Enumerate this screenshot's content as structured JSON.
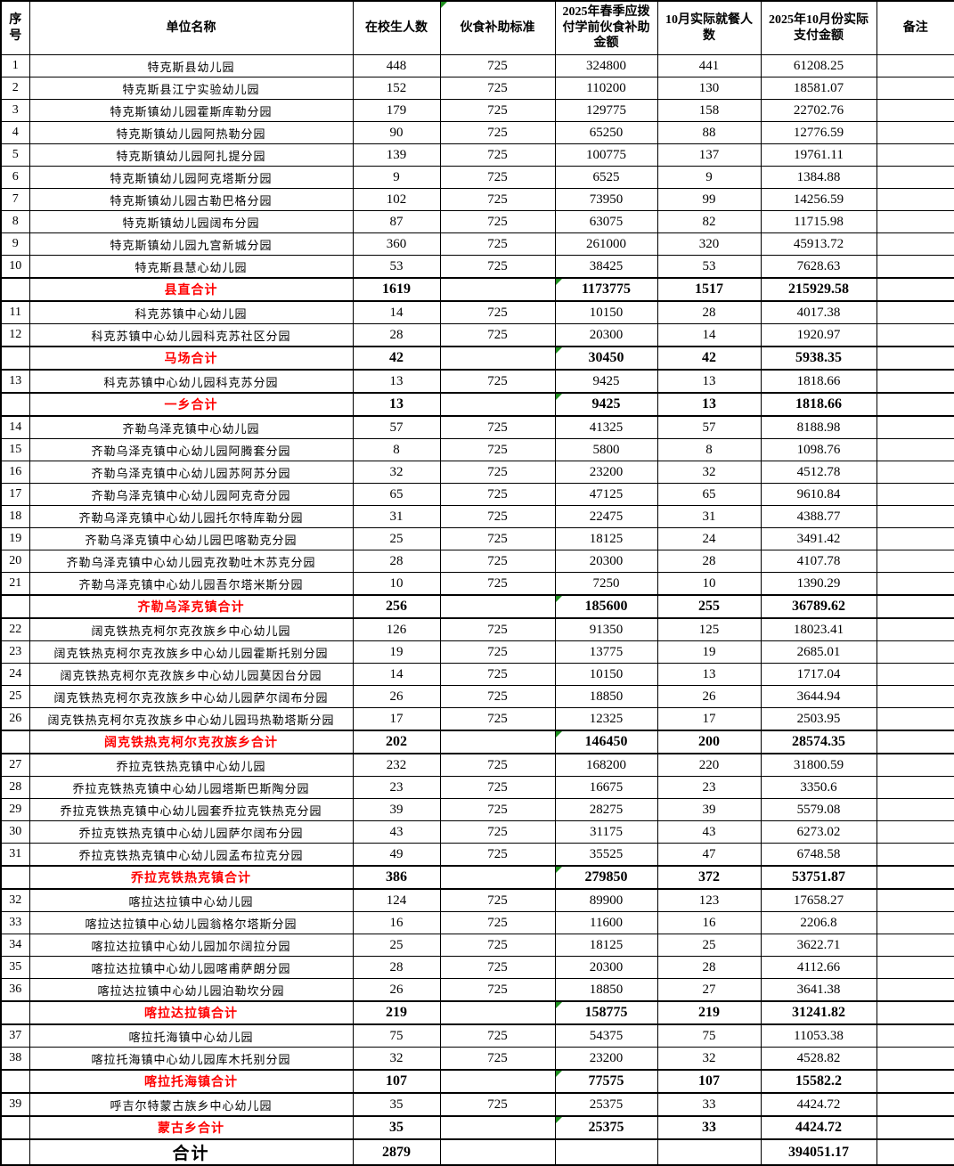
{
  "colors": {
    "grid": "#000000",
    "subtotal_text": "#ff0000",
    "flag_green": "#1e8f1e",
    "body_text": "#000000"
  },
  "table": {
    "headers": [
      "序号",
      "单位名称",
      "在校生人数",
      "伙食补助标准",
      "2025年春季应拨付学前伙食补助金额",
      "10月实际就餐人数",
      "2025年10月份实际支付金额",
      "备注"
    ],
    "header_flag_index": 3,
    "rows": [
      {
        "kind": "data",
        "cells": [
          "1",
          "特克斯县幼儿园",
          "448",
          "725",
          "324800",
          "441",
          "61208.25",
          ""
        ]
      },
      {
        "kind": "data",
        "cells": [
          "2",
          "特克斯县江宁实验幼儿园",
          "152",
          "725",
          "110200",
          "130",
          "18581.07",
          ""
        ]
      },
      {
        "kind": "data",
        "cells": [
          "3",
          "特克斯镇幼儿园霍斯库勒分园",
          "179",
          "725",
          "129775",
          "158",
          "22702.76",
          ""
        ]
      },
      {
        "kind": "data",
        "cells": [
          "4",
          "特克斯镇幼儿园阿热勒分园",
          "90",
          "725",
          "65250",
          "88",
          "12776.59",
          ""
        ]
      },
      {
        "kind": "data",
        "cells": [
          "5",
          "特克斯镇幼儿园阿扎提分园",
          "139",
          "725",
          "100775",
          "137",
          "19761.11",
          ""
        ]
      },
      {
        "kind": "data",
        "cells": [
          "6",
          "特克斯镇幼儿园阿克塔斯分园",
          "9",
          "725",
          "6525",
          "9",
          "1384.88",
          ""
        ]
      },
      {
        "kind": "data",
        "cells": [
          "7",
          "特克斯镇幼儿园古勒巴格分园",
          "102",
          "725",
          "73950",
          "99",
          "14256.59",
          ""
        ]
      },
      {
        "kind": "data",
        "cells": [
          "8",
          "特克斯镇幼儿园阔布分园",
          "87",
          "725",
          "63075",
          "82",
          "11715.98",
          ""
        ]
      },
      {
        "kind": "data",
        "cells": [
          "9",
          "特克斯镇幼儿园九宫新城分园",
          "360",
          "725",
          "261000",
          "320",
          "45913.72",
          ""
        ]
      },
      {
        "kind": "data",
        "cells": [
          "10",
          "特克斯县慧心幼儿园",
          "53",
          "725",
          "38425",
          "53",
          "7628.63",
          ""
        ]
      },
      {
        "kind": "subtotal",
        "flag": true,
        "cells": [
          "",
          "县直合计",
          "1619",
          "",
          "1173775",
          "1517",
          "215929.58",
          ""
        ]
      },
      {
        "kind": "data",
        "cells": [
          "11",
          "科克苏镇中心幼儿园",
          "14",
          "725",
          "10150",
          "28",
          "4017.38",
          ""
        ]
      },
      {
        "kind": "data",
        "cells": [
          "12",
          "科克苏镇中心幼儿园科克苏社区分园",
          "28",
          "725",
          "20300",
          "14",
          "1920.97",
          ""
        ]
      },
      {
        "kind": "subtotal",
        "flag": true,
        "cells": [
          "",
          "马场合计",
          "42",
          "",
          "30450",
          "42",
          "5938.35",
          ""
        ]
      },
      {
        "kind": "data",
        "cells": [
          "13",
          "科克苏镇中心幼儿园科克苏分园",
          "13",
          "725",
          "9425",
          "13",
          "1818.66",
          ""
        ]
      },
      {
        "kind": "subtotal",
        "flag": true,
        "cells": [
          "",
          "一乡合计",
          "13",
          "",
          "9425",
          "13",
          "1818.66",
          ""
        ]
      },
      {
        "kind": "data",
        "cells": [
          "14",
          "齐勒乌泽克镇中心幼儿园",
          "57",
          "725",
          "41325",
          "57",
          "8188.98",
          ""
        ]
      },
      {
        "kind": "data",
        "cells": [
          "15",
          "齐勒乌泽克镇中心幼儿园阿腾套分园",
          "8",
          "725",
          "5800",
          "8",
          "1098.76",
          ""
        ]
      },
      {
        "kind": "data",
        "cells": [
          "16",
          "齐勒乌泽克镇中心幼儿园苏阿苏分园",
          "32",
          "725",
          "23200",
          "32",
          "4512.78",
          ""
        ]
      },
      {
        "kind": "data",
        "cells": [
          "17",
          "齐勒乌泽克镇中心幼儿园阿克奇分园",
          "65",
          "725",
          "47125",
          "65",
          "9610.84",
          ""
        ]
      },
      {
        "kind": "data",
        "cells": [
          "18",
          "齐勒乌泽克镇中心幼儿园托尔特库勒分园",
          "31",
          "725",
          "22475",
          "31",
          "4388.77",
          ""
        ]
      },
      {
        "kind": "data",
        "cells": [
          "19",
          "齐勒乌泽克镇中心幼儿园巴喀勒克分园",
          "25",
          "725",
          "18125",
          "24",
          "3491.42",
          ""
        ]
      },
      {
        "kind": "data",
        "cells": [
          "20",
          "齐勒乌泽克镇中心幼儿园克孜勒吐木苏克分园",
          "28",
          "725",
          "20300",
          "28",
          "4107.78",
          ""
        ]
      },
      {
        "kind": "data",
        "cells": [
          "21",
          "齐勒乌泽克镇中心幼儿园吾尔塔米斯分园",
          "10",
          "725",
          "7250",
          "10",
          "1390.29",
          ""
        ]
      },
      {
        "kind": "subtotal",
        "flag": true,
        "cells": [
          "",
          "齐勒乌泽克镇合计",
          "256",
          "",
          "185600",
          "255",
          "36789.62",
          ""
        ]
      },
      {
        "kind": "data",
        "cells": [
          "22",
          "阔克铁热克柯尔克孜族乡中心幼儿园",
          "126",
          "725",
          "91350",
          "125",
          "18023.41",
          ""
        ]
      },
      {
        "kind": "data",
        "cells": [
          "23",
          "阔克铁热克柯尔克孜族乡中心幼儿园霍斯托别分园",
          "19",
          "725",
          "13775",
          "19",
          "2685.01",
          ""
        ]
      },
      {
        "kind": "data",
        "cells": [
          "24",
          "阔克铁热克柯尔克孜族乡中心幼儿园莫因台分园",
          "14",
          "725",
          "10150",
          "13",
          "1717.04",
          ""
        ]
      },
      {
        "kind": "data",
        "cells": [
          "25",
          "阔克铁热克柯尔克孜族乡中心幼儿园萨尔阔布分园",
          "26",
          "725",
          "18850",
          "26",
          "3644.94",
          ""
        ]
      },
      {
        "kind": "data",
        "cells": [
          "26",
          "阔克铁热克柯尔克孜族乡中心幼儿园玛热勒塔斯分园",
          "17",
          "725",
          "12325",
          "17",
          "2503.95",
          ""
        ]
      },
      {
        "kind": "subtotal",
        "flag": true,
        "cells": [
          "",
          "阔克铁热克柯尔克孜族乡合计",
          "202",
          "",
          "146450",
          "200",
          "28574.35",
          ""
        ]
      },
      {
        "kind": "data",
        "cells": [
          "27",
          "乔拉克铁热克镇中心幼儿园",
          "232",
          "725",
          "168200",
          "220",
          "31800.59",
          ""
        ]
      },
      {
        "kind": "data",
        "cells": [
          "28",
          "乔拉克铁热克镇中心幼儿园塔斯巴斯陶分园",
          "23",
          "725",
          "16675",
          "23",
          "3350.6",
          ""
        ]
      },
      {
        "kind": "data",
        "cells": [
          "29",
          "乔拉克铁热克镇中心幼儿园套乔拉克铁热克分园",
          "39",
          "725",
          "28275",
          "39",
          "5579.08",
          ""
        ]
      },
      {
        "kind": "data",
        "cells": [
          "30",
          "乔拉克铁热克镇中心幼儿园萨尔阔布分园",
          "43",
          "725",
          "31175",
          "43",
          "6273.02",
          ""
        ]
      },
      {
        "kind": "data",
        "cells": [
          "31",
          "乔拉克铁热克镇中心幼儿园孟布拉克分园",
          "49",
          "725",
          "35525",
          "47",
          "6748.58",
          ""
        ]
      },
      {
        "kind": "subtotal",
        "flag": true,
        "cells": [
          "",
          "乔拉克铁热克镇合计",
          "386",
          "",
          "279850",
          "372",
          "53751.87",
          ""
        ]
      },
      {
        "kind": "data",
        "cells": [
          "32",
          "喀拉达拉镇中心幼儿园",
          "124",
          "725",
          "89900",
          "123",
          "17658.27",
          ""
        ]
      },
      {
        "kind": "data",
        "cells": [
          "33",
          "喀拉达拉镇中心幼儿园翁格尔塔斯分园",
          "16",
          "725",
          "11600",
          "16",
          "2206.8",
          ""
        ]
      },
      {
        "kind": "data",
        "cells": [
          "34",
          "喀拉达拉镇中心幼儿园加尔阔拉分园",
          "25",
          "725",
          "18125",
          "25",
          "3622.71",
          ""
        ]
      },
      {
        "kind": "data",
        "cells": [
          "35",
          "喀拉达拉镇中心幼儿园喀甫萨朗分园",
          "28",
          "725",
          "20300",
          "28",
          "4112.66",
          ""
        ]
      },
      {
        "kind": "data",
        "cells": [
          "36",
          "喀拉达拉镇中心幼儿园泊勒坎分园",
          "26",
          "725",
          "18850",
          "27",
          "3641.38",
          ""
        ]
      },
      {
        "kind": "subtotal",
        "flag": true,
        "cells": [
          "",
          "喀拉达拉镇合计",
          "219",
          "",
          "158775",
          "219",
          "31241.82",
          ""
        ]
      },
      {
        "kind": "data",
        "cells": [
          "37",
          "喀拉托海镇中心幼儿园",
          "75",
          "725",
          "54375",
          "75",
          "11053.38",
          ""
        ]
      },
      {
        "kind": "data",
        "cells": [
          "38",
          "喀拉托海镇中心幼儿园库木托别分园",
          "32",
          "725",
          "23200",
          "32",
          "4528.82",
          ""
        ]
      },
      {
        "kind": "subtotal",
        "flag": true,
        "cells": [
          "",
          "喀拉托海镇合计",
          "107",
          "",
          "77575",
          "107",
          "15582.2",
          ""
        ]
      },
      {
        "kind": "data",
        "cells": [
          "39",
          "呼吉尔特蒙古族乡中心幼儿园",
          "35",
          "725",
          "25375",
          "33",
          "4424.72",
          ""
        ]
      },
      {
        "kind": "subtotal",
        "flag": true,
        "cells": [
          "",
          "蒙古乡合计",
          "35",
          "",
          "25375",
          "33",
          "4424.72",
          ""
        ]
      },
      {
        "kind": "grand",
        "cells": [
          "",
          "合计",
          "2879",
          "",
          "",
          "",
          "394051.17",
          ""
        ]
      }
    ]
  }
}
